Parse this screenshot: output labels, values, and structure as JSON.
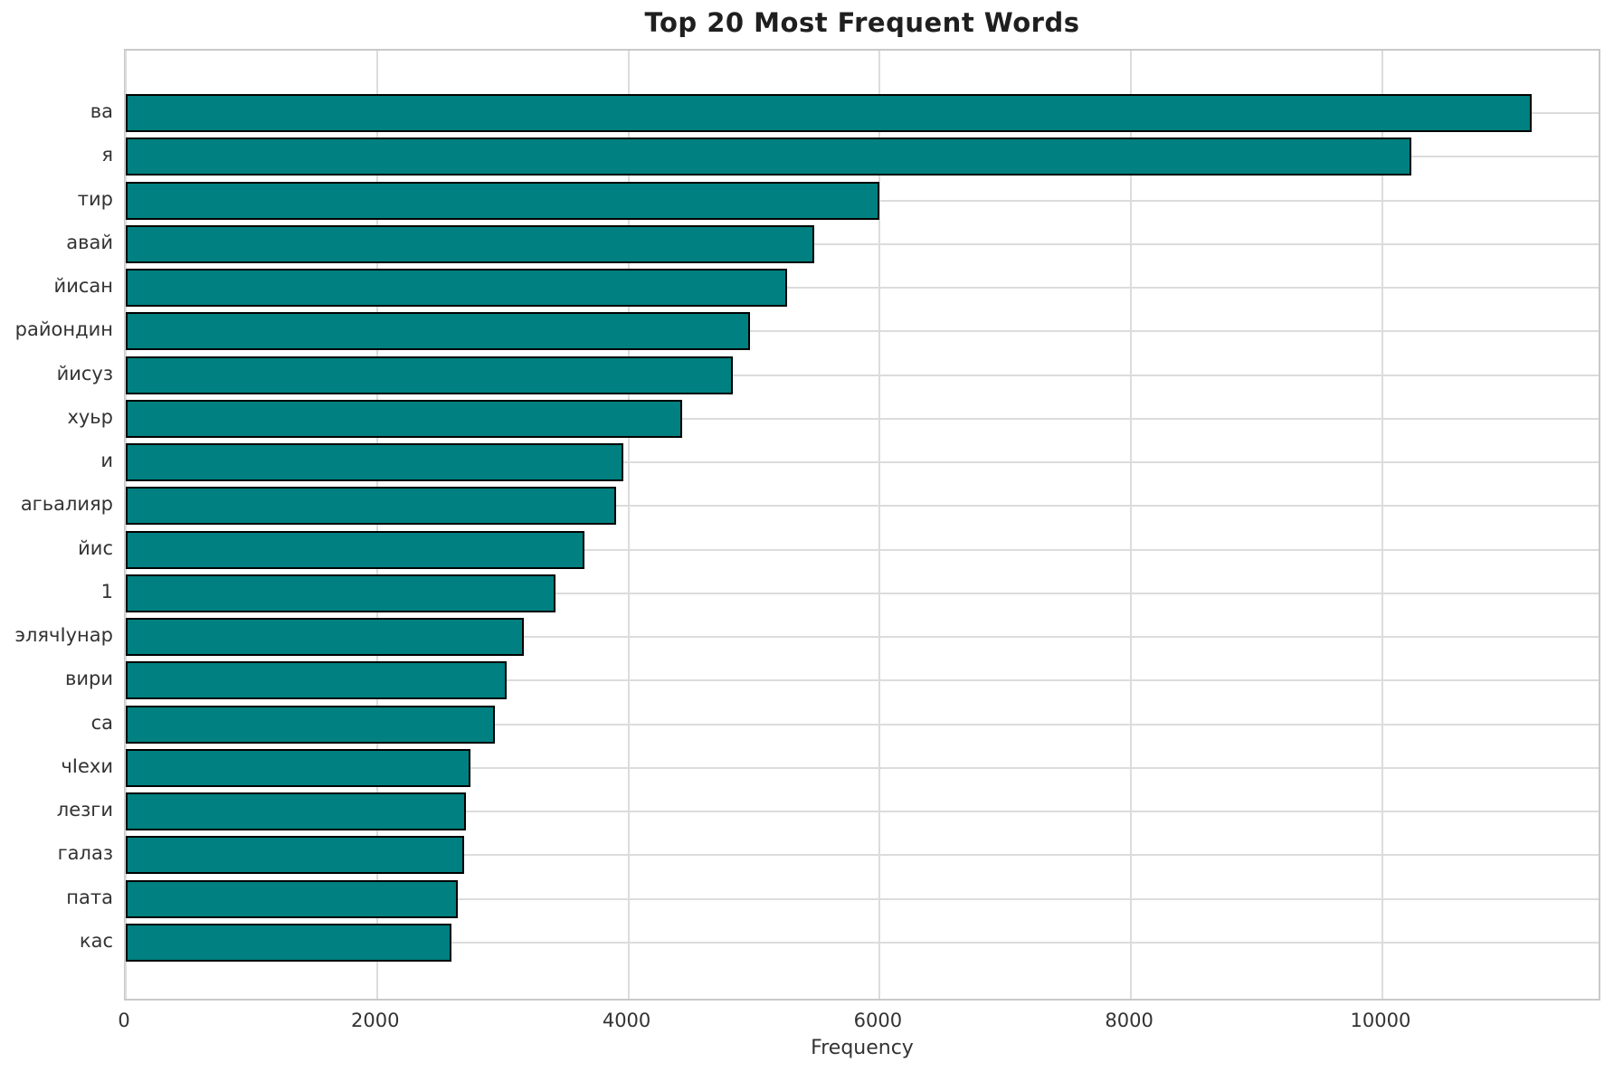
{
  "chart_data": {
    "type": "bar",
    "orientation": "horizontal",
    "title": "Top 20 Most Frequent Words",
    "xlabel": "Frequency",
    "ylabel": "",
    "categories": [
      "ва",
      "я",
      "тир",
      "авай",
      "йисан",
      "райондин",
      "йисуз",
      "хуьр",
      "и",
      "агьалияр",
      "йис",
      "1",
      "элячIунар",
      "вири",
      "са",
      "чIехи",
      "лезги",
      "галаз",
      "пата",
      "кас"
    ],
    "values": [
      11190,
      10230,
      6000,
      5480,
      5260,
      4970,
      4830,
      4430,
      3960,
      3900,
      3650,
      3420,
      3170,
      3030,
      2940,
      2740,
      2705,
      2690,
      2640,
      2590
    ],
    "xlim": [
      0,
      11750
    ],
    "x_ticks": [
      0,
      2000,
      4000,
      6000,
      8000,
      10000
    ],
    "grid": true,
    "grid_x": true,
    "grid_y": true,
    "legend": false,
    "colors": {
      "bar_fill": "#008080",
      "bar_edge": "#000000",
      "grid": "#dcdcdc",
      "spine": "#c9c9c9",
      "tick_text": "#333333",
      "title_text": "#1f1f1f",
      "background": "#ffffff"
    }
  }
}
